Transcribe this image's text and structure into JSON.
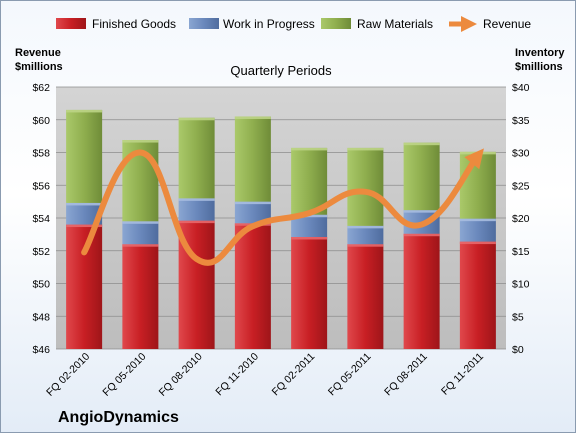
{
  "company": "AngioDynamics",
  "colors": {
    "finished_goods": "#d0262b",
    "work_in_progress": "#6f8fc3",
    "raw_materials": "#9bbb59",
    "revenue": "#ec8a3e",
    "plot_bg": "#c8c8c8"
  },
  "chart_data": {
    "type": "bar",
    "stacked": true,
    "title": "Quarterly Periods",
    "left_axis_title": [
      "Revenue",
      "$millions"
    ],
    "right_axis_title": [
      "Inventory",
      "$millions"
    ],
    "categories": [
      "FQ 02-2010",
      "FQ 05-2010",
      "FQ 08-2010",
      "FQ 11-2010",
      "FQ 02-2011",
      "FQ 05-2011",
      "FQ 08-2011",
      "FQ 11-2011"
    ],
    "left_axis": {
      "min": 46,
      "max": 62,
      "step": 2,
      "ticks": [
        "$46",
        "$48",
        "$50",
        "$52",
        "$54",
        "$56",
        "$58",
        "$60",
        "$62"
      ]
    },
    "right_axis": {
      "min": 0,
      "max": 40,
      "step": 5,
      "ticks": [
        "$0",
        "$5",
        "$10",
        "$15",
        "$20",
        "$25",
        "$30",
        "$35",
        "$40"
      ]
    },
    "series": [
      {
        "name": "Finished Goods",
        "axis": "right",
        "type": "bar",
        "values": [
          19.0,
          16.0,
          19.6,
          19.2,
          17.1,
          16.0,
          17.6,
          16.4
        ]
      },
      {
        "name": "Work in Progress",
        "axis": "right",
        "type": "bar",
        "values": [
          3.3,
          3.5,
          3.4,
          3.3,
          3.4,
          2.8,
          3.6,
          3.5
        ]
      },
      {
        "name": "Raw Materials",
        "axis": "right",
        "type": "bar",
        "values": [
          14.2,
          12.4,
          12.3,
          13.0,
          10.2,
          11.9,
          10.3,
          10.2
        ]
      },
      {
        "name": "Revenue",
        "axis": "left",
        "type": "line",
        "values": [
          51.9,
          58.0,
          51.5,
          53.5,
          54.3,
          55.6,
          53.6,
          57.8
        ]
      }
    ],
    "legend_position": "top",
    "grid": true
  }
}
